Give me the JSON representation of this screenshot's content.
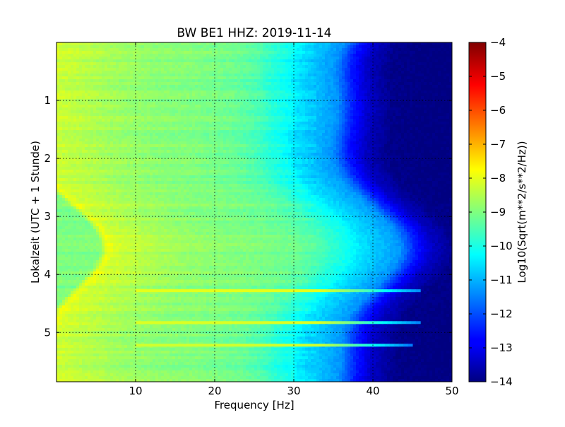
{
  "chart_data": {
    "type": "heatmap",
    "title": "BW BE1 HHZ: 2019-11-14",
    "xlabel": "Frequency [Hz]",
    "ylabel": "Lokalzeit (UTC + 1 Stunde)",
    "xlim": [
      0,
      50
    ],
    "ylim": [
      5.85,
      0
    ],
    "x_ticks": [
      10,
      20,
      30,
      40,
      50
    ],
    "y_ticks": [
      1,
      2,
      3,
      4,
      5
    ],
    "grid": true,
    "colormap": "jet",
    "colorbar": {
      "label": "Log10(Sqrt(m**2/s**2/Hz))",
      "range": [
        -14,
        -4
      ],
      "ticks": [
        -4,
        -5,
        -6,
        -7,
        -8,
        -9,
        -10,
        -11,
        -12,
        -13,
        -14
      ]
    },
    "spectral_profile": {
      "frequency_hz": [
        0,
        1,
        2,
        5,
        10,
        15,
        20,
        25,
        28,
        30,
        32,
        33,
        35,
        38,
        40,
        42,
        45,
        50
      ],
      "log10_amplitude": [
        -9.0,
        -7.9,
        -8.2,
        -8.4,
        -8.7,
        -8.9,
        -9.0,
        -9.2,
        -9.5,
        -9.9,
        -10.2,
        -10.5,
        -10.8,
        -11.3,
        -12.5,
        -13.3,
        -13.9,
        -14.0
      ]
    },
    "horizontal_lines": [
      {
        "time_h": 4.28,
        "f_min": 10,
        "f_max": 46,
        "log10_amplitude": -8.0
      },
      {
        "time_h": 4.83,
        "f_min": 10,
        "f_max": 46,
        "log10_amplitude": -8.1
      },
      {
        "time_h": 5.22,
        "f_min": 10,
        "f_max": 45,
        "log10_amplitude": -8.2
      }
    ]
  }
}
